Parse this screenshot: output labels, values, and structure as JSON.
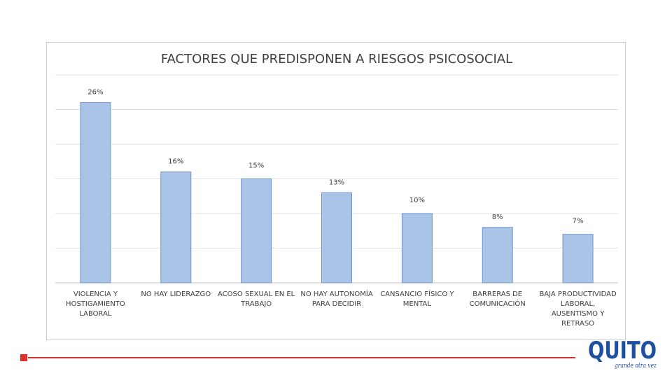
{
  "chart_data": {
    "type": "bar",
    "title": "FACTORES QUE PREDISPONEN A RIESGOS PSICOSOCIAL",
    "xlabel": "",
    "ylabel": "",
    "ylim": [
      0,
      30
    ],
    "grid": true,
    "legend": "none",
    "value_format": "percent",
    "categories": [
      [
        "VIOLENCIA Y",
        "HOSTIGAMIENTO",
        "LABORAL"
      ],
      [
        "NO HAY LIDERAZGO"
      ],
      [
        "ACOSO SEXUAL EN EL",
        "TRABAJO"
      ],
      [
        "NO HAY AUTONOMÍA",
        "PARA DECIDIR"
      ],
      [
        "CANSANCIO FÍSICO Y",
        "MENTAL"
      ],
      [
        "BARRERAS DE",
        "COMUNICACIÓN"
      ],
      [
        "BAJA PRODUCTIVIDAD",
        "LABORAL,",
        "AUSENTISMO Y",
        "RETRASO"
      ]
    ],
    "values": [
      26,
      16,
      15,
      13,
      10,
      8,
      7
    ],
    "data_labels": [
      "26%",
      "16%",
      "15%",
      "13%",
      "10%",
      "8%",
      "7%"
    ]
  },
  "colors": {
    "bar_fill": "#a9c4e6",
    "bar_stroke": "#6e95c9",
    "accent_red": "#e32c2c",
    "logo_blue": "#1f4fa0",
    "logo_red": "#e32c2c"
  },
  "logo": {
    "text": "QUITO",
    "tagline": "grande otra vez"
  }
}
